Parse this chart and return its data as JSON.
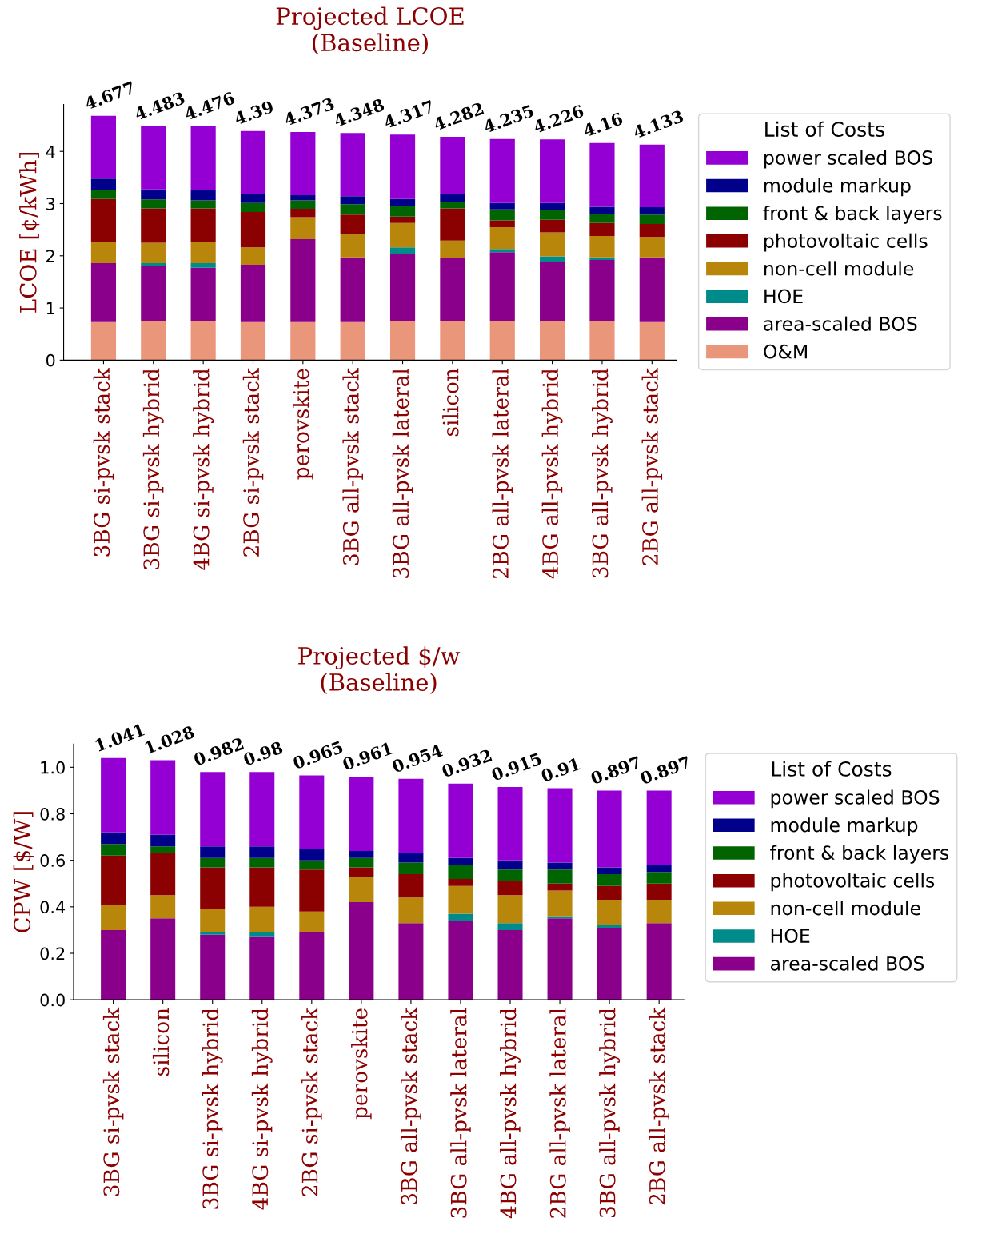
{
  "chart_data": [
    {
      "type": "bar",
      "title": "Projected LCOE\n(Baseline)",
      "ylabel": "LCOE [¢/kWh]",
      "stacked": true,
      "legend": "right",
      "legend_title": "List of Costs",
      "categories": [
        "3BG si-pvsk stack",
        "3BG si-pvsk hybrid",
        "4BG si-pvsk hybrid",
        "2BG si-pvsk stack",
        "perovskite",
        "3BG all-pvsk stack",
        "3BG all-pvsk lateral",
        "silicon",
        "2BG all-pvsk lateral",
        "4BG all-pvsk hybrid",
        "3BG all-pvsk hybrid",
        "2BG all-pvsk stack"
      ],
      "ylim": [
        0,
        4.9
      ],
      "yticks": [
        0,
        1,
        2,
        3,
        4
      ],
      "totals": [
        "4.677",
        "4.483",
        "4.476",
        "4.39",
        "4.373",
        "4.348",
        "4.317",
        "4.282",
        "4.235",
        "4.226",
        "4.16",
        "4.133"
      ],
      "series": [
        {
          "name": "O&M",
          "color": "#e9967a",
          "values": [
            0.73,
            0.74,
            0.74,
            0.73,
            0.73,
            0.73,
            0.74,
            0.74,
            0.74,
            0.74,
            0.74,
            0.73
          ]
        },
        {
          "name": "area-scaled BOS",
          "color": "#8b008b",
          "values": [
            1.13,
            1.07,
            1.03,
            1.1,
            1.59,
            1.24,
            1.3,
            1.21,
            1.33,
            1.15,
            1.18,
            1.24
          ]
        },
        {
          "name": "HOE",
          "color": "#008b8b",
          "values": [
            0,
            0.05,
            0.09,
            0,
            0,
            0,
            0.12,
            0,
            0.06,
            0.1,
            0.05,
            0
          ]
        },
        {
          "name": "non-cell module",
          "color": "#b8860b",
          "values": [
            0.41,
            0.39,
            0.41,
            0.33,
            0.42,
            0.45,
            0.47,
            0.34,
            0.42,
            0.46,
            0.41,
            0.39
          ]
        },
        {
          "name": "photovoltaic cells",
          "color": "#8b0000",
          "values": [
            0.82,
            0.66,
            0.64,
            0.68,
            0.16,
            0.37,
            0.12,
            0.62,
            0.13,
            0.24,
            0.25,
            0.25
          ]
        },
        {
          "name": "front & back layers",
          "color": "#006400",
          "values": [
            0.17,
            0.17,
            0.15,
            0.17,
            0.16,
            0.2,
            0.21,
            0.12,
            0.21,
            0.18,
            0.18,
            0.18
          ]
        },
        {
          "name": "module markup",
          "color": "#00008b",
          "values": [
            0.22,
            0.19,
            0.2,
            0.17,
            0.1,
            0.15,
            0.13,
            0.15,
            0.12,
            0.14,
            0.13,
            0.14
          ]
        },
        {
          "name": "power scaled BOS",
          "color": "#9400d3",
          "values": [
            1.2,
            1.21,
            1.22,
            1.21,
            1.21,
            1.21,
            1.23,
            1.1,
            1.225,
            1.22,
            1.22,
            1.2
          ]
        }
      ]
    },
    {
      "type": "bar",
      "title": "Projected $/w\n(Baseline)",
      "ylabel": "CPW [$/W]",
      "stacked": true,
      "legend": "right",
      "legend_title": "List of Costs",
      "categories": [
        "3BG si-pvsk stack",
        "silicon",
        "3BG si-pvsk hybrid",
        "4BG si-pvsk hybrid",
        "2BG si-pvsk stack",
        "perovskite",
        "3BG all-pvsk stack",
        "3BG all-pvsk lateral",
        "4BG all-pvsk hybrid",
        "2BG all-pvsk lateral",
        "3BG all-pvsk hybrid",
        "2BG all-pvsk stack"
      ],
      "ylim": [
        0,
        1.1
      ],
      "yticks": [
        {
          "value": 0,
          "label": "0.0"
        },
        0.2,
        0.4,
        0.6,
        0.8,
        {
          "value": 1,
          "label": "1.0"
        }
      ],
      "totals": [
        "1.041",
        "1.028",
        "0.982",
        "0.98",
        "0.965",
        "0.961",
        "0.954",
        "0.932",
        "0.915",
        "0.91",
        "0.897",
        "0.897"
      ],
      "series": [
        {
          "name": "area-scaled BOS",
          "color": "#8b008b",
          "values": [
            0.3,
            0.35,
            0.28,
            0.27,
            0.29,
            0.42,
            0.33,
            0.34,
            0.3,
            0.35,
            0.31,
            0.33
          ]
        },
        {
          "name": "HOE",
          "color": "#008b8b",
          "values": [
            0,
            0,
            0.01,
            0.02,
            0,
            0,
            0,
            0.03,
            0.03,
            0.01,
            0.01,
            0
          ]
        },
        {
          "name": "non-cell module",
          "color": "#b8860b",
          "values": [
            0.11,
            0.1,
            0.1,
            0.11,
            0.09,
            0.11,
            0.11,
            0.12,
            0.12,
            0.11,
            0.11,
            0.1
          ]
        },
        {
          "name": "photovoltaic cells",
          "color": "#8b0000",
          "values": [
            0.21,
            0.18,
            0.18,
            0.17,
            0.18,
            0.04,
            0.1,
            0.03,
            0.06,
            0.03,
            0.06,
            0.07
          ]
        },
        {
          "name": "front & back layers",
          "color": "#006400",
          "values": [
            0.05,
            0.03,
            0.04,
            0.04,
            0.04,
            0.04,
            0.05,
            0.06,
            0.05,
            0.06,
            0.05,
            0.05
          ]
        },
        {
          "name": "module markup",
          "color": "#00008b",
          "values": [
            0.05,
            0.05,
            0.05,
            0.05,
            0.05,
            0.03,
            0.04,
            0.03,
            0.04,
            0.03,
            0.03,
            0.03
          ]
        },
        {
          "name": "power scaled BOS",
          "color": "#9400d3",
          "values": [
            0.32,
            0.32,
            0.32,
            0.32,
            0.315,
            0.32,
            0.32,
            0.32,
            0.315,
            0.32,
            0.33,
            0.32
          ]
        }
      ]
    }
  ]
}
